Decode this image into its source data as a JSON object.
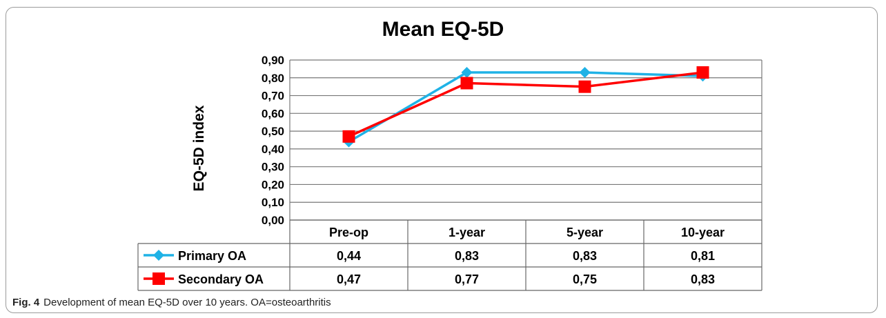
{
  "chart_data": {
    "type": "line",
    "title": "Mean EQ-5D",
    "xlabel": "",
    "ylabel": "EQ-5D index",
    "ylim": [
      0,
      0.9
    ],
    "yticks": [
      "0,00",
      "0,10",
      "0,20",
      "0,30",
      "0,40",
      "0,50",
      "0,60",
      "0,70",
      "0,80",
      "0,90"
    ],
    "categories": [
      "Pre-op",
      "1-year",
      "5-year",
      "10-year"
    ],
    "series": [
      {
        "name": "Primary OA",
        "values": [
          0.44,
          0.83,
          0.83,
          0.81
        ],
        "labels": [
          "0,44",
          "0,83",
          "0,83",
          "0,81"
        ],
        "color": "#1fb2e6",
        "marker": "diamond"
      },
      {
        "name": "Secondary OA",
        "values": [
          0.47,
          0.77,
          0.75,
          0.83
        ],
        "labels": [
          "0,47",
          "0,77",
          "0,75",
          "0,83"
        ],
        "color": "#ff0000",
        "marker": "square"
      }
    ],
    "grid": true,
    "legend": "data-table"
  },
  "caption": {
    "label": "Fig. 4",
    "text": "Development of mean EQ-5D over 10 years. OA=osteoarthritis"
  }
}
